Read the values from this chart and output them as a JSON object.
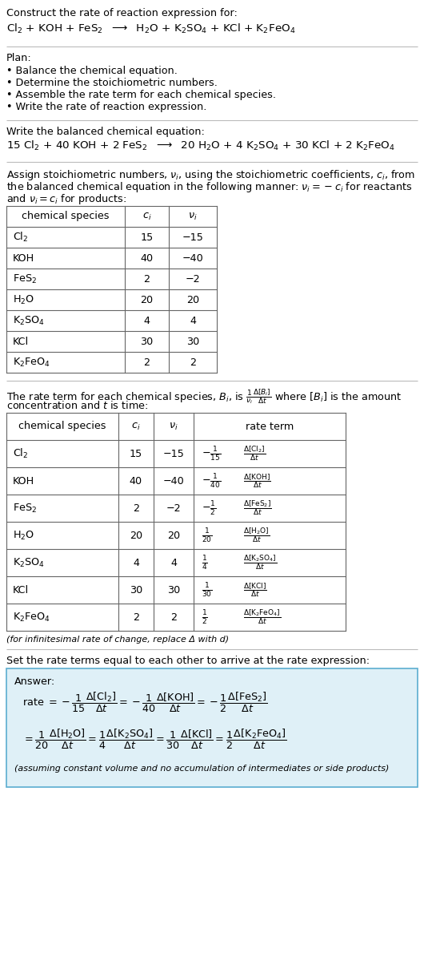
{
  "title_line1": "Construct the rate of reaction expression for:",
  "plan_header": "Plan:",
  "plan_items": [
    "• Balance the chemical equation.",
    "• Determine the stoichiometric numbers.",
    "• Assemble the rate term for each chemical species.",
    "• Write the rate of reaction expression."
  ],
  "balanced_header": "Write the balanced chemical equation:",
  "stoich_intro1": "Assign stoichiometric numbers, $\\nu_i$, using the stoichiometric coefficients, $c_i$, from",
  "stoich_intro2": "the balanced chemical equation in the following manner: $\\nu_i = -c_i$ for reactants",
  "stoich_intro3": "and $\\nu_i = c_i$ for products:",
  "table1_headers": [
    "chemical species",
    "$c_i$",
    "$\\nu_i$"
  ],
  "table1_rows": [
    [
      "Cl_2",
      "15",
      "−15"
    ],
    [
      "KOH",
      "40",
      "−40"
    ],
    [
      "FeS_2",
      "2",
      "−2"
    ],
    [
      "H_2O",
      "20",
      "20"
    ],
    [
      "K_2SO_4",
      "4",
      "4"
    ],
    [
      "KCl",
      "30",
      "30"
    ],
    [
      "K_2FeO_4",
      "2",
      "2"
    ]
  ],
  "rate_intro1": "The rate term for each chemical species, $B_i$, is $\\frac{1}{\\nu_i}\\frac{\\Delta[B_i]}{\\Delta t}$ where $[B_i]$ is the amount",
  "rate_intro2": "concentration and $t$ is time:",
  "table2_headers": [
    "chemical species",
    "$c_i$",
    "$\\nu_i$",
    "rate term"
  ],
  "table2_rows": [
    [
      "Cl_2",
      "15",
      "−15"
    ],
    [
      "KOH",
      "40",
      "−40"
    ],
    [
      "FeS_2",
      "2",
      "−2"
    ],
    [
      "H_2O",
      "20",
      "20"
    ],
    [
      "K_2SO_4",
      "4",
      "4"
    ],
    [
      "KCl",
      "30",
      "30"
    ],
    [
      "K_2FeO_4",
      "2",
      "2"
    ]
  ],
  "rate_terms_frac": [
    "-\\frac{1}{15}",
    "-\\frac{1}{40}",
    "-\\frac{1}{2}",
    "\\frac{1}{20}",
    "\\frac{1}{4}",
    "\\frac{1}{30}",
    "\\frac{1}{2}"
  ],
  "rate_terms_delta": [
    "\\frac{\\Delta[\\mathrm{Cl_2}]}{\\Delta t}",
    "\\frac{\\Delta[\\mathrm{KOH}]}{\\Delta t}",
    "\\frac{\\Delta[\\mathrm{FeS_2}]}{\\Delta t}",
    "\\frac{\\Delta[\\mathrm{H_2O}]}{\\Delta t}",
    "\\frac{\\Delta[\\mathrm{K_2SO_4}]}{\\Delta t}",
    "\\frac{\\Delta[\\mathrm{KCl}]}{\\Delta t}",
    "\\frac{\\Delta[\\mathrm{K_2FeO_4}]}{\\Delta t}"
  ],
  "infinitesimal_note": "(for infinitesimal rate of change, replace Δ with d)",
  "set_rate_text": "Set the rate terms equal to each other to arrive at the rate expression:",
  "answer_box_color": "#dff0f7",
  "answer_box_border": "#5badd0",
  "answer_label": "Answer:",
  "assuming_note": "(assuming constant volume and no accumulation of intermediates or side products)",
  "bg_color": "#ffffff",
  "separator_color": "#bbbbbb",
  "table_line_color": "#666666"
}
